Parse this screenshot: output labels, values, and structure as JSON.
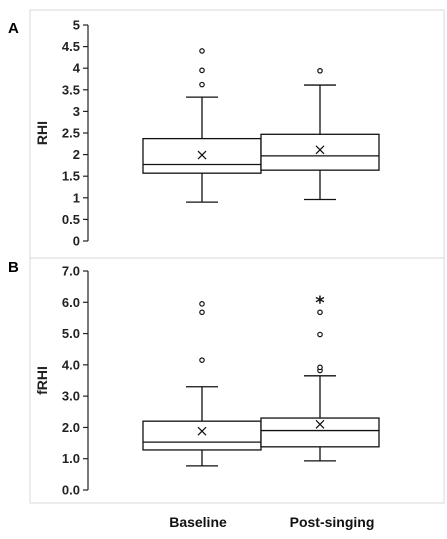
{
  "chart_data": [
    {
      "type": "box",
      "panel": "A",
      "xlabel": "",
      "ylabel": "RHI",
      "ylim": [
        0,
        5
      ],
      "yticks": [
        "0",
        "0.5",
        "1",
        "1.5",
        "2",
        "2.5",
        "3",
        "3.5",
        "4",
        "4.5",
        "5"
      ],
      "categories": [
        "Baseline",
        "Post-singing"
      ],
      "grid": false,
      "boxes": [
        {
          "min": 0.9,
          "q1": 1.57,
          "median": 1.77,
          "q3": 2.37,
          "max": 3.33,
          "mean": 1.99,
          "outliers": [
            3.62,
            3.95,
            4.4
          ],
          "marker": ""
        },
        {
          "min": 0.96,
          "q1": 1.64,
          "median": 1.97,
          "q3": 2.47,
          "max": 3.61,
          "mean": 2.11,
          "outliers": [
            3.94
          ],
          "marker": ""
        }
      ]
    },
    {
      "type": "box",
      "panel": "B",
      "xlabel": "",
      "ylabel": "fRHI",
      "ylim": [
        0,
        7
      ],
      "yticks": [
        "0.0",
        "1.0",
        "2.0",
        "3.0",
        "4.0",
        "5.0",
        "6.0",
        "7.0"
      ],
      "categories": [
        "Baseline",
        "Post-singing"
      ],
      "grid": false,
      "boxes": [
        {
          "min": 0.77,
          "q1": 1.28,
          "median": 1.53,
          "q3": 2.2,
          "max": 3.3,
          "mean": 1.88,
          "outliers": [
            4.15,
            5.68,
            5.95
          ],
          "marker": ""
        },
        {
          "min": 0.93,
          "q1": 1.38,
          "median": 1.9,
          "q3": 2.3,
          "max": 3.65,
          "mean": 2.1,
          "outliers": [
            3.82,
            3.92,
            4.97,
            5.68
          ],
          "marker": "*"
        }
      ]
    }
  ]
}
